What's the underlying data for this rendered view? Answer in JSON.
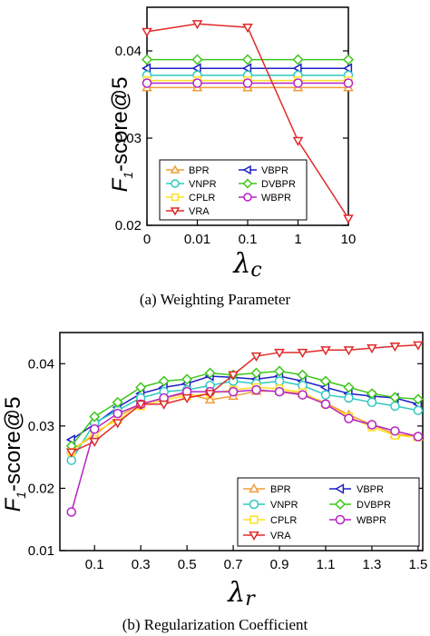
{
  "chart_data": [
    {
      "type": "line",
      "caption": "(a) Weighting Parameter",
      "ylabel": "F1-score@5",
      "ylabel_main": "F",
      "ylabel_sub": "1",
      "ylabel_rest": "-score@5",
      "xlabel": "λc",
      "xlabel_main": "λ",
      "xlabel_sub": "c",
      "categories": [
        "0",
        "0.01",
        "0.1",
        "1",
        "10"
      ],
      "ylim": [
        0.02,
        0.045
      ],
      "yticks": [
        "0.02",
        "0.03",
        "0.04"
      ],
      "legend_position": "bottom-left",
      "series": [
        {
          "name": "BPR",
          "color": "#f39c34",
          "marker": "triangle-up",
          "values": [
            0.0358,
            0.0358,
            0.0358,
            0.0358,
            0.0358
          ]
        },
        {
          "name": "VBPR",
          "color": "#1f1fc8",
          "marker": "triangle-left",
          "values": [
            0.038,
            0.038,
            0.038,
            0.038,
            0.038
          ]
        },
        {
          "name": "VNPR",
          "color": "#2fc9c0",
          "marker": "circle",
          "values": [
            0.0372,
            0.0372,
            0.0372,
            0.0372,
            0.0372
          ]
        },
        {
          "name": "DVBPR",
          "color": "#3ec71a",
          "marker": "diamond",
          "values": [
            0.039,
            0.039,
            0.039,
            0.039,
            0.039
          ]
        },
        {
          "name": "CPLR",
          "color": "#ffe021",
          "marker": "square",
          "values": [
            0.0366,
            0.0366,
            0.0366,
            0.0366,
            0.0366
          ]
        },
        {
          "name": "WBPR",
          "color": "#b524c4",
          "marker": "circle",
          "values": [
            0.0363,
            0.0363,
            0.0363,
            0.0363,
            0.0363
          ]
        },
        {
          "name": "VRA",
          "color": "#e02a2a",
          "marker": "triangle-down",
          "values": [
            0.0422,
            0.0431,
            0.0427,
            0.0297,
            0.0208
          ]
        }
      ]
    },
    {
      "type": "line",
      "caption": "(b) Regularization Coefficient",
      "ylabel": "F1-score@5",
      "ylabel_main": "F",
      "ylabel_sub": "1",
      "ylabel_rest": "-score@5",
      "xlabel": "λr",
      "xlabel_main": "λ",
      "xlabel_sub": "r",
      "x": [
        0.0,
        0.1,
        0.2,
        0.3,
        0.4,
        0.5,
        0.6,
        0.7,
        0.8,
        0.9,
        1.0,
        1.1,
        1.2,
        1.3,
        1.4,
        1.5
      ],
      "xlim": [
        -0.05,
        1.52
      ],
      "xticks": [
        "0.1",
        "0.3",
        "0.5",
        "0.7",
        "0.9",
        "1.1",
        "1.3",
        "1.5"
      ],
      "ylim": [
        0.01,
        0.045
      ],
      "yticks": [
        "0.01",
        "0.02",
        "0.03",
        "0.04"
      ],
      "legend_position": "bottom-right",
      "series": [
        {
          "name": "BPR",
          "color": "#f39c34",
          "marker": "triangle-up",
          "values": [
            0.0262,
            0.0285,
            0.0315,
            0.0335,
            0.0345,
            0.0352,
            0.0342,
            0.0348,
            0.0356,
            0.0356,
            0.0352,
            0.0337,
            0.0318,
            0.0302,
            0.0287,
            0.0283
          ]
        },
        {
          "name": "VBPR",
          "color": "#1f1fc8",
          "marker": "triangle-left",
          "values": [
            0.0278,
            0.0303,
            0.033,
            0.0352,
            0.0362,
            0.0368,
            0.038,
            0.0378,
            0.0375,
            0.038,
            0.0372,
            0.0362,
            0.0352,
            0.0348,
            0.0345,
            0.0335
          ]
        },
        {
          "name": "VNPR",
          "color": "#2fc9c0",
          "marker": "circle",
          "values": [
            0.0245,
            0.0305,
            0.0325,
            0.0345,
            0.0355,
            0.0358,
            0.0365,
            0.0372,
            0.0368,
            0.0372,
            0.0365,
            0.035,
            0.0345,
            0.0338,
            0.0332,
            0.0325
          ]
        },
        {
          "name": "DVBPR",
          "color": "#3ec71a",
          "marker": "diamond",
          "values": [
            0.0268,
            0.0315,
            0.0338,
            0.0362,
            0.0372,
            0.0375,
            0.0385,
            0.0382,
            0.0385,
            0.0388,
            0.0382,
            0.0372,
            0.0362,
            0.0352,
            0.0346,
            0.0343
          ]
        },
        {
          "name": "CPLR",
          "color": "#ffe021",
          "marker": "square",
          "values": [
            0.0258,
            0.029,
            0.031,
            0.0332,
            0.0342,
            0.0348,
            0.0352,
            0.0358,
            0.0362,
            0.036,
            0.0354,
            0.0335,
            0.0315,
            0.0298,
            0.0285,
            0.0282
          ]
        },
        {
          "name": "WBPR",
          "color": "#b524c4",
          "marker": "circle",
          "values": [
            0.0162,
            0.0295,
            0.032,
            0.0335,
            0.0345,
            0.0355,
            0.0355,
            0.0355,
            0.0358,
            0.0355,
            0.035,
            0.0335,
            0.0312,
            0.0302,
            0.0292,
            0.0283
          ]
        },
        {
          "name": "VRA",
          "color": "#e02a2a",
          "marker": "triangle-down",
          "values": [
            0.0258,
            0.0275,
            0.0305,
            0.0335,
            0.0335,
            0.0345,
            0.0352,
            0.0382,
            0.0412,
            0.0418,
            0.0418,
            0.0422,
            0.0422,
            0.0425,
            0.0428,
            0.043
          ]
        }
      ]
    }
  ]
}
